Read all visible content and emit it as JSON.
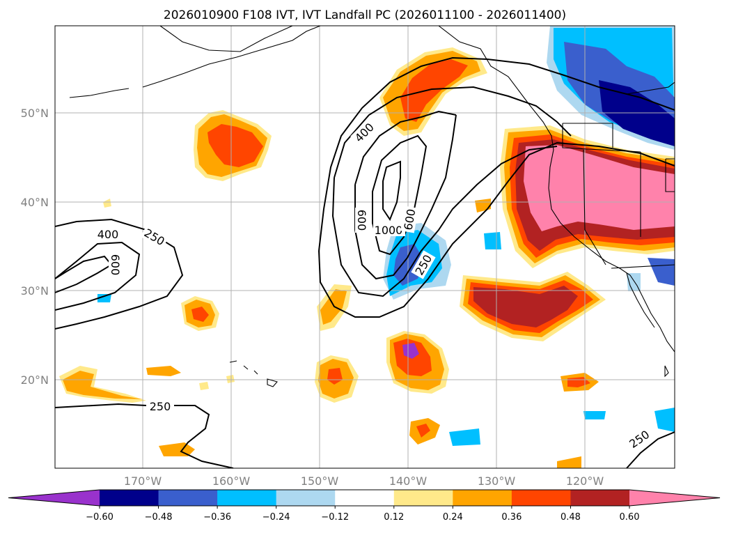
{
  "map": {
    "title": "2026010900 F108 IVT, IVT Landfall PC (2026011100 - 2026011400)",
    "lon_labels": [
      "170°W",
      "160°W",
      "150°W",
      "140°W",
      "130°W",
      "120°W"
    ],
    "lat_labels": [
      "50°N",
      "40°N",
      "30°N",
      "20°N"
    ],
    "contour_labels": [
      "400",
      "250",
      "600",
      "400",
      "600",
      "1000",
      "600",
      "250",
      "250",
      "250"
    ]
  },
  "colorbar": {
    "ticks": [
      "−0.60",
      "−0.48",
      "−0.36",
      "−0.24",
      "−0.12",
      "0.12",
      "0.24",
      "0.36",
      "0.48",
      "0.60"
    ],
    "colors": [
      "#9932cc",
      "#00008b",
      "#3a5fcd",
      "#00bfff",
      "#add8f0",
      "#ffffff",
      "#ffe98a",
      "#ffa500",
      "#ff4500",
      "#b22222",
      "#ff82ab"
    ]
  },
  "colors": {
    "pink": "#ff82ab",
    "darkred": "#b22222",
    "orangered": "#ff4500",
    "orange": "#ffa500",
    "yellow": "#ffe98a",
    "lightblue": "#add8f0",
    "deepsky": "#00bfff",
    "royal": "#3a5fcd",
    "navy": "#00008b",
    "purple": "#9932cc"
  }
}
